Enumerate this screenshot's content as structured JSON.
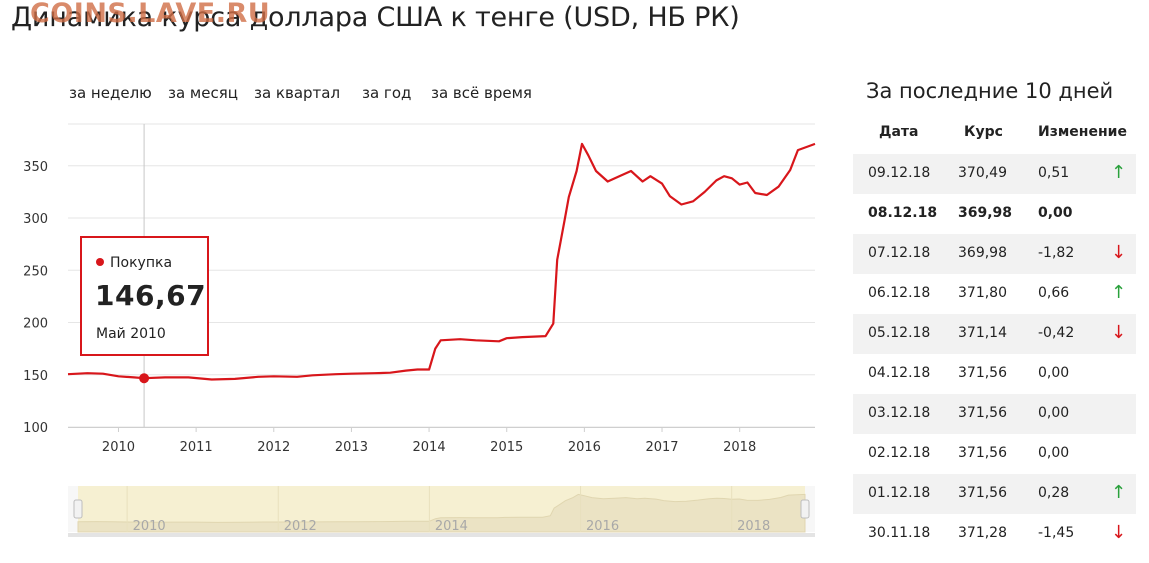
{
  "watermark": "COINS.LAVE.RU",
  "page_title": "Динамика курса доллара США к тенге (USD, НБ РК)",
  "periods": [
    "за неделю",
    "за месяц",
    "за квартал",
    "за год",
    "за всё время"
  ],
  "tooltip": {
    "series": "Покупка",
    "value": "146,67",
    "date": "Май 2010"
  },
  "colors": {
    "line": "#d8161b",
    "up": "#2aa13c",
    "down": "#d8161b",
    "navigator_fill": "#f6f0d2"
  },
  "chart_data": {
    "type": "line",
    "title": "Динамика курса доллара США к тенге (USD, НБ РК)",
    "xlabel": "",
    "ylabel": "",
    "ylim": [
      100,
      390
    ],
    "xlim": [
      2009.35,
      2018.97
    ],
    "grid": true,
    "yticks": [
      100,
      150,
      200,
      250,
      300,
      350
    ],
    "xticks": [
      "2010",
      "2011",
      "2012",
      "2013",
      "2014",
      "2015",
      "2016",
      "2017",
      "2018"
    ],
    "navigator_ticks": [
      "2010",
      "2012",
      "2014",
      "2016",
      "2018"
    ],
    "series": [
      {
        "name": "Покупка",
        "x": [
          2009.35,
          2009.6,
          2009.8,
          2010.0,
          2010.2,
          2010.33,
          2010.6,
          2010.9,
          2011.2,
          2011.5,
          2011.8,
          2012.0,
          2012.3,
          2012.5,
          2012.8,
          2013.0,
          2013.3,
          2013.5,
          2013.7,
          2013.85,
          2014.0,
          2014.08,
          2014.15,
          2014.4,
          2014.6,
          2014.9,
          2015.0,
          2015.2,
          2015.5,
          2015.6,
          2015.65,
          2015.7,
          2015.75,
          2015.8,
          2015.9,
          2015.97,
          2016.05,
          2016.15,
          2016.3,
          2016.45,
          2016.6,
          2016.75,
          2016.85,
          2017.0,
          2017.1,
          2017.25,
          2017.4,
          2017.55,
          2017.7,
          2017.8,
          2017.9,
          2018.0,
          2018.1,
          2018.2,
          2018.35,
          2018.5,
          2018.65,
          2018.75,
          2018.9,
          2018.97
        ],
        "y": [
          150.5,
          151.5,
          151,
          148.5,
          147.5,
          146.67,
          147.5,
          147.5,
          145.5,
          146,
          148,
          148.5,
          148,
          149.5,
          150.5,
          151,
          151.5,
          152,
          154,
          155,
          155,
          175,
          183,
          184,
          183,
          182,
          185,
          186,
          187,
          199,
          260,
          280,
          300,
          320,
          345,
          371,
          360,
          345,
          335,
          340,
          345,
          335,
          340,
          333,
          321,
          313,
          316,
          325,
          336,
          340,
          338,
          332,
          334,
          324,
          322,
          330,
          346,
          365,
          369,
          371
        ]
      }
    ],
    "highlight": {
      "x": 2010.33,
      "y": 146.67
    }
  },
  "table": {
    "title": "За последние 10 дней",
    "headers": {
      "date": "Дата",
      "rate": "Курс",
      "change": "Изменение"
    },
    "rows": [
      {
        "date": "09.12.18",
        "rate": "370,49",
        "change": "0,51",
        "arrow": "↑",
        "dir": "up"
      },
      {
        "date": "08.12.18",
        "rate": "369,98",
        "change": "0,00",
        "arrow": "",
        "dir": "none"
      },
      {
        "date": "07.12.18",
        "rate": "369,98",
        "change": "-1,82",
        "arrow": "↓",
        "dir": "down"
      },
      {
        "date": "06.12.18",
        "rate": "371,80",
        "change": "0,66",
        "arrow": "↑",
        "dir": "up"
      },
      {
        "date": "05.12.18",
        "rate": "371,14",
        "change": "-0,42",
        "arrow": "↓",
        "dir": "down"
      },
      {
        "date": "04.12.18",
        "rate": "371,56",
        "change": "0,00",
        "arrow": "",
        "dir": "none"
      },
      {
        "date": "03.12.18",
        "rate": "371,56",
        "change": "0,00",
        "arrow": "",
        "dir": "none"
      },
      {
        "date": "02.12.18",
        "rate": "371,56",
        "change": "0,00",
        "arrow": "",
        "dir": "none"
      },
      {
        "date": "01.12.18",
        "rate": "371,56",
        "change": "0,28",
        "arrow": "↑",
        "dir": "up"
      },
      {
        "date": "30.11.18",
        "rate": "371,28",
        "change": "-1,45",
        "arrow": "↓",
        "dir": "down"
      }
    ]
  }
}
